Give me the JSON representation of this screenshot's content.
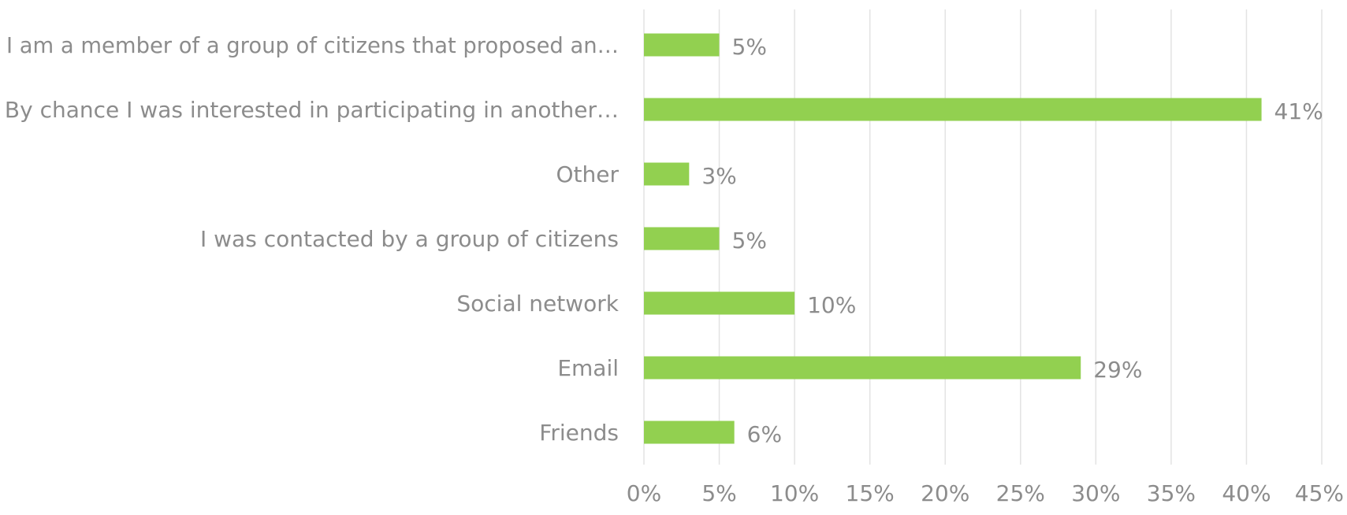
{
  "chart_data": {
    "type": "bar",
    "orientation": "horizontal",
    "categories": [
      "I am a member of a group of citizens that proposed an…",
      "By chance I was interested in participating in another…",
      "Other",
      "I was contacted by a group of citizens",
      "Social network",
      "Email",
      "Friends"
    ],
    "values": [
      5,
      41,
      3,
      5,
      10,
      29,
      6
    ],
    "value_labels": [
      "5%",
      "41%",
      "3%",
      "5%",
      "10%",
      "29%",
      "6%"
    ],
    "xlim": [
      0,
      45
    ],
    "x_ticks": [
      0,
      5,
      10,
      15,
      20,
      25,
      30,
      35,
      40,
      45
    ],
    "x_tick_labels": [
      "0%",
      "5%",
      "10%",
      "15%",
      "20%",
      "25%",
      "30%",
      "35%",
      "40%",
      "45%"
    ],
    "title": "",
    "xlabel": "",
    "ylabel": "",
    "grid": "vertical",
    "legend": "none",
    "colors": {
      "bar": "#92d050",
      "grid": "#e3e3e3",
      "text": "#8c8c8c"
    }
  }
}
